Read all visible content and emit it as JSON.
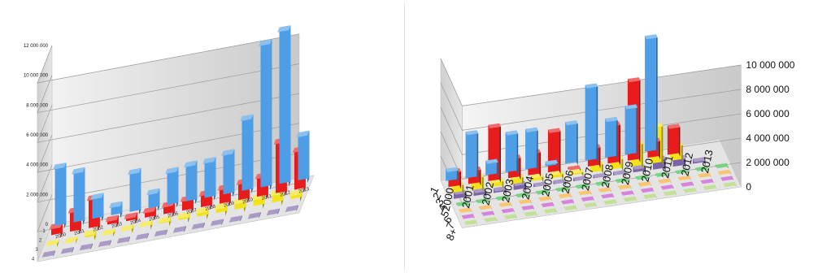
{
  "chart_data": [
    {
      "type": "bar",
      "subtype": "3d-column",
      "title": "",
      "x_axis": {
        "label": "",
        "categories": [
          "2000",
          "2001",
          "2002",
          "2003",
          "2004",
          "2005",
          "2006",
          "2007",
          "2008",
          "2009",
          "2010",
          "2011",
          "2012",
          "2013"
        ]
      },
      "depth_axis": {
        "label": "",
        "categories": [
          "1",
          "2",
          "3",
          "4"
        ]
      },
      "y_axis": {
        "label": "",
        "ylim": [
          0,
          12000000
        ],
        "ticks": [
          0,
          2000000,
          4000000,
          6000000,
          8000000,
          10000000,
          12000000
        ],
        "tick_labels": [
          "0",
          "2 000 000",
          "4 000 000",
          "6 000 000",
          "8 000 000",
          "10 000 000",
          "12 000 000"
        ]
      },
      "grid": true,
      "legend": "none",
      "series": [
        {
          "depth": "1",
          "color": "#4d9ee6",
          "values": [
            4100000,
            3550000,
            1600000,
            800000,
            2800000,
            1200000,
            2400000,
            2600000,
            2600000,
            2900000,
            5000000,
            9800000,
            10500000,
            3200000
          ]
        },
        {
          "depth": "2",
          "color": "#e81c1c",
          "values": [
            700000,
            1550000,
            2150000,
            500000,
            450000,
            600000,
            750000,
            900000,
            1050000,
            1200000,
            1350000,
            1500000,
            3600000,
            2800000
          ]
        },
        {
          "depth": "3",
          "color": "#f2e21a",
          "values": [
            200000,
            150000,
            400000,
            200000,
            250000,
            300000,
            350000,
            400000,
            500000,
            550000,
            650000,
            700000,
            750000,
            500000
          ]
        },
        {
          "depth": "4",
          "color": "#7b65a8",
          "values": [
            80000,
            80000,
            80000,
            80000,
            80000,
            80000,
            80000,
            80000,
            80000,
            80000,
            80000,
            80000,
            80000,
            80000
          ]
        }
      ]
    },
    {
      "type": "bar",
      "subtype": "3d-column",
      "title": "",
      "x_axis": {
        "label": "",
        "categories": [
          "2000",
          "2001",
          "2002",
          "2003",
          "2004",
          "2005",
          "2006",
          "2007",
          "2008",
          "2009",
          "2010",
          "2011",
          "2012",
          "2013"
        ]
      },
      "depth_axis": {
        "label": "",
        "categories": [
          "1",
          "2",
          "3",
          "4",
          "5",
          "6",
          "7",
          "8+"
        ]
      },
      "y_axis": {
        "label": "",
        "ylim": [
          0,
          10000000
        ],
        "ticks": [
          0,
          2000000,
          4000000,
          6000000,
          8000000,
          10000000
        ],
        "tick_labels": [
          "0",
          "2 000 000",
          "4 000 000",
          "6 000 000",
          "8 000 000",
          "10 000 000"
        ]
      },
      "grid": true,
      "legend": "none",
      "series": [
        {
          "depth": "1",
          "color": "#4d9ee6",
          "values": [
            1000000,
            3800000,
            1200000,
            3300000,
            3300000,
            400000,
            3400000,
            6200000,
            3200000,
            4000000,
            9500000,
            0,
            0,
            0
          ]
        },
        {
          "depth": "2",
          "color": "#e81c1c",
          "values": [
            1400000,
            1300000,
            4600000,
            1800000,
            2000000,
            3500000,
            200000,
            1700000,
            3300000,
            6700000,
            1500000,
            2400000,
            0,
            0
          ]
        },
        {
          "depth": "3",
          "color": "#f2e21a",
          "values": [
            800000,
            1200000,
            600000,
            700000,
            500000,
            500000,
            400000,
            800000,
            1000000,
            2000000,
            3200000,
            1400000,
            0,
            0
          ]
        },
        {
          "depth": "4",
          "color": "#7b65a8",
          "values": [
            600000,
            500000,
            400000,
            600000,
            300000,
            300000,
            300000,
            300000,
            300000,
            500000,
            1000000,
            800000,
            400000,
            0
          ]
        },
        {
          "depth": "5",
          "color": "#2bbf3b",
          "values": [
            150000,
            150000,
            150000,
            150000,
            150000,
            150000,
            150000,
            150000,
            150000,
            150000,
            150000,
            150000,
            150000,
            150000
          ]
        },
        {
          "depth": "6",
          "color": "#f5a623",
          "values": [
            100000,
            100000,
            100000,
            100000,
            100000,
            100000,
            100000,
            100000,
            100000,
            100000,
            100000,
            100000,
            100000,
            100000
          ]
        },
        {
          "depth": "7",
          "color": "#c23fc9",
          "values": [
            80000,
            80000,
            80000,
            80000,
            80000,
            80000,
            80000,
            80000,
            80000,
            80000,
            80000,
            80000,
            80000,
            80000
          ]
        },
        {
          "depth": "8+",
          "color": "#9fd35a",
          "values": [
            70000,
            70000,
            70000,
            70000,
            70000,
            70000,
            70000,
            70000,
            70000,
            70000,
            70000,
            70000,
            70000,
            70000
          ]
        }
      ]
    }
  ]
}
